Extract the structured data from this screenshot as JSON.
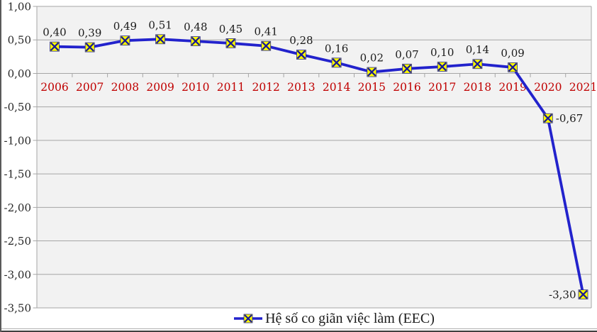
{
  "chart_data": {
    "type": "line",
    "title": "",
    "xlabel": "",
    "ylabel": "",
    "categories": [
      "2006",
      "2007",
      "2008",
      "2009",
      "2010",
      "2011",
      "2012",
      "2013",
      "2014",
      "2015",
      "2016",
      "2017",
      "2018",
      "2019",
      "2020",
      "2021"
    ],
    "series": [
      {
        "name": "Hệ số co giãn việc làm (EEC)",
        "values": [
          0.4,
          0.39,
          0.49,
          0.51,
          0.48,
          0.45,
          0.41,
          0.28,
          0.16,
          0.02,
          0.07,
          0.1,
          0.14,
          0.09,
          -0.67,
          -3.3
        ],
        "point_labels": [
          "0,40",
          "0,39",
          "0,49",
          "0,51",
          "0,48",
          "0,45",
          "0,41",
          "0,28",
          "0,16",
          "0,02",
          "0,07",
          "0,10",
          "0,14",
          "0,09",
          "-0,67",
          "-3,30"
        ],
        "label_positions": [
          "above",
          "above",
          "above",
          "above",
          "above",
          "above",
          "above",
          "above",
          "above",
          "above",
          "above",
          "above",
          "above",
          "above",
          "right",
          "left"
        ],
        "line_color": "#2222cc",
        "marker": "x-in-yellow-square",
        "marker_fill": "#ffff00",
        "marker_stroke": "#1a1a94"
      }
    ],
    "y_axis": {
      "min": -3.5,
      "max": 1.0,
      "step": 0.5,
      "tick_labels": [
        "1,00",
        "0,50",
        "0,00",
        "-0,50",
        "-1,00",
        "-1,50",
        "-2,00",
        "-2,50",
        "-3,00",
        "-3,50"
      ],
      "label_color": "#262626"
    },
    "x_axis": {
      "label_color": "#c00000"
    },
    "legend": {
      "label": "Hệ số co giãn việc làm (EEC)",
      "position": "bottom"
    },
    "plot": {
      "background": "#f2f2f2",
      "grid": true,
      "grid_color": "#a6a6a6",
      "data_label_color": "#1a1a1a"
    }
  }
}
